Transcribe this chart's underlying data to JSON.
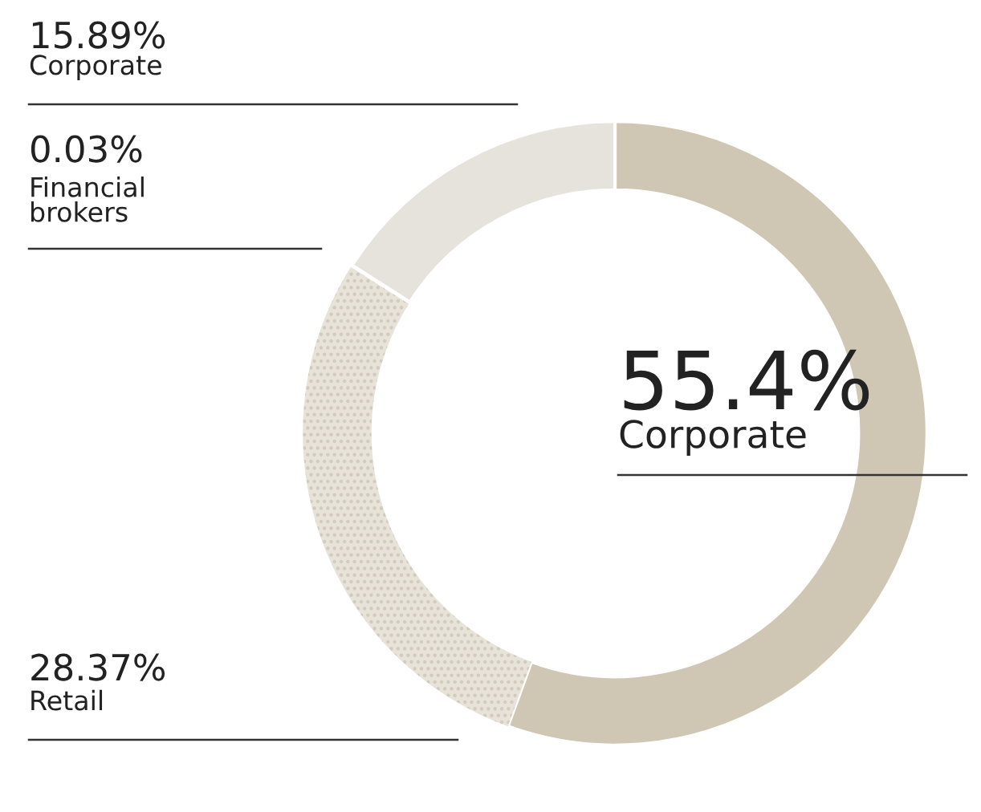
{
  "chart_data": {
    "type": "donut",
    "categories": [
      "Corporate",
      "Retail",
      "Financial\nbrokers",
      "Corporate"
    ],
    "values": [
      55.4,
      28.37,
      0.03,
      15.89
    ],
    "colors": [
      "#cfc6b4",
      "#e8e3d9",
      "#ffffff",
      "#e6e3dd"
    ],
    "value_labels": [
      "55.4%",
      "28.37%",
      "0.03%",
      "15.89%"
    ],
    "legend": false
  }
}
